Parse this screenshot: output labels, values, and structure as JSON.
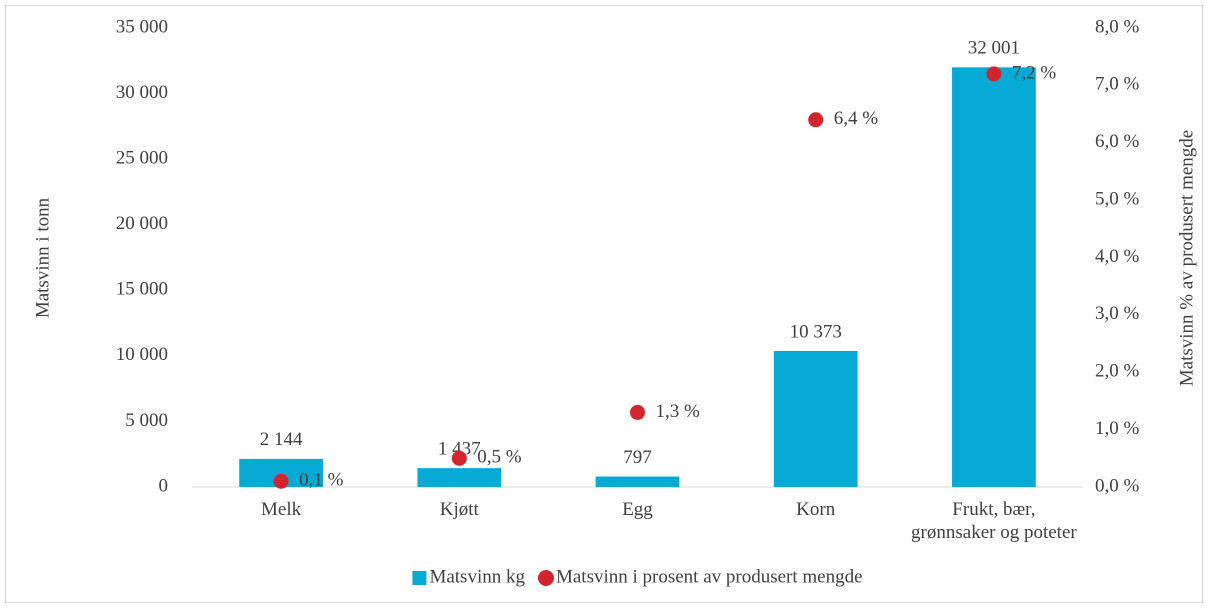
{
  "chart_data": {
    "type": "bar",
    "categories": [
      "Melk",
      "Kjøtt",
      "Egg",
      "Korn",
      "Frukt, bær, grønnsaker og poteter"
    ],
    "series": [
      {
        "name": "Matsvinn kg",
        "type": "bar",
        "color": "#07a9d5",
        "values": [
          2144,
          1437,
          797,
          10373,
          32001
        ],
        "value_labels": [
          "2 144",
          "1 437",
          "797",
          "10 373",
          "32 001"
        ]
      },
      {
        "name": "Matsvinn i prosent av produsert mengde",
        "type": "scatter",
        "axis": "y2",
        "color": "#d4252f",
        "values": [
          0.1,
          0.5,
          1.3,
          6.4,
          7.2
        ],
        "value_labels": [
          "0,1 %",
          "0,5 %",
          "1,3 %",
          "6,4 %",
          "7,2 %"
        ]
      }
    ],
    "ylabel": "Matsvinn i tonn",
    "y2label": "Matsvinn % av produsert mengde",
    "ylim": [
      0,
      35000
    ],
    "yticks": [
      0,
      {
        "value": 5000,
        "label": "5 000"
      },
      {
        "value": 10000,
        "label": "10 000"
      },
      {
        "value": 15000,
        "label": "15 000"
      },
      {
        "value": 20000,
        "label": "20 000"
      },
      {
        "value": 25000,
        "label": "25 000"
      },
      {
        "value": 30000,
        "label": "30 000"
      },
      {
        "value": 35000,
        "label": "35 000"
      }
    ],
    "y2lim": [
      0,
      8
    ],
    "y2ticks": [
      {
        "value": 0,
        "label": "0,0 %"
      },
      {
        "value": 1,
        "label": "1,0 %"
      },
      {
        "value": 2,
        "label": "2,0 %"
      },
      {
        "value": 3,
        "label": "3,0 %"
      },
      {
        "value": 4,
        "label": "4,0 %"
      },
      {
        "value": 5,
        "label": "5,0 %"
      },
      {
        "value": 6,
        "label": "6,0 %"
      },
      {
        "value": 7,
        "label": "7,0 %"
      },
      {
        "value": 8,
        "label": "8,0 %"
      }
    ],
    "legend": "bottom"
  }
}
